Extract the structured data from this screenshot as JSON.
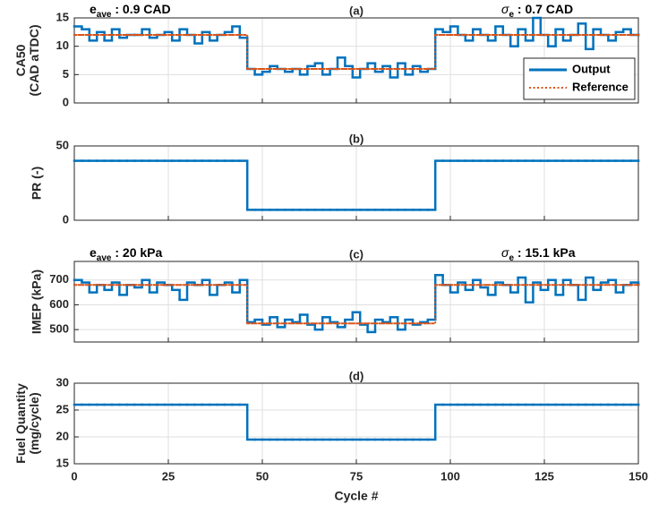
{
  "chart_data": [
    {
      "type": "line",
      "step": true,
      "title": "(a)",
      "ylabel": [
        "CA50",
        "(CAD aTDC)"
      ],
      "annotations": [
        {
          "text": "e",
          "sub": "ave",
          "rest": " : 0.9 CAD",
          "side": "left"
        },
        {
          "text": "σ",
          "sub": "e",
          "rest": " : 0.7 CAD",
          "side": "right"
        }
      ],
      "x": [
        0,
        2,
        4,
        6,
        8,
        10,
        12,
        14,
        16,
        18,
        20,
        22,
        24,
        26,
        28,
        30,
        32,
        34,
        36,
        38,
        40,
        42,
        44,
        46,
        48,
        50,
        52,
        54,
        56,
        58,
        60,
        62,
        64,
        66,
        68,
        70,
        72,
        74,
        76,
        78,
        80,
        82,
        84,
        86,
        88,
        90,
        92,
        94,
        96,
        98,
        100,
        102,
        104,
        106,
        108,
        110,
        112,
        114,
        116,
        118,
        120,
        122,
        124,
        126,
        128,
        130,
        132,
        134,
        136,
        138,
        140,
        142,
        144,
        146,
        148,
        150
      ],
      "series": [
        {
          "name": "Output",
          "color": "#0072bd",
          "style": "solid",
          "values": [
            13.5,
            13,
            11,
            12.5,
            11,
            13,
            11.5,
            12,
            12,
            13,
            11.5,
            12,
            12.5,
            11,
            13,
            12,
            10.5,
            12.5,
            11,
            12,
            12.5,
            13.5,
            11.5,
            6,
            5,
            5.5,
            6.5,
            6,
            5.5,
            6,
            5,
            6.5,
            7,
            5,
            6,
            8,
            6.5,
            4.5,
            6,
            7,
            5.5,
            6.5,
            4.5,
            7,
            5,
            6.5,
            5.5,
            6,
            13,
            12.5,
            13.5,
            12,
            11,
            13,
            12,
            11,
            13.5,
            12,
            10,
            13,
            11,
            15,
            12,
            10,
            13,
            11,
            12,
            14,
            9.5,
            13,
            12,
            11,
            12.5,
            13,
            12,
            12
          ]
        },
        {
          "name": "Reference",
          "color": "#d95319",
          "style": "dotted",
          "values": [
            12,
            12,
            12,
            12,
            12,
            12,
            12,
            12,
            12,
            12,
            12,
            12,
            12,
            12,
            12,
            12,
            12,
            12,
            12,
            12,
            12,
            12,
            12,
            6,
            6,
            6,
            6,
            6,
            6,
            6,
            6,
            6,
            6,
            6,
            6,
            6,
            6,
            6,
            6,
            6,
            6,
            6,
            6,
            6,
            6,
            6,
            6,
            6,
            12,
            12,
            12,
            12,
            12,
            12,
            12,
            12,
            12,
            12,
            12,
            12,
            12,
            12,
            12,
            12,
            12,
            12,
            12,
            12,
            12,
            12,
            12,
            12,
            12,
            12,
            12,
            12
          ]
        }
      ],
      "xlim": [
        0,
        150
      ],
      "xticks": [
        0,
        25,
        50,
        75,
        100,
        125,
        150
      ],
      "ylim": [
        0,
        15
      ],
      "yticks": [
        0,
        5,
        10,
        15
      ],
      "grid": true,
      "legend": "lower right"
    },
    {
      "type": "line",
      "step": true,
      "title": "(b)",
      "ylabel": [
        "PR (-)"
      ],
      "x": [
        0,
        2,
        4,
        6,
        8,
        10,
        12,
        14,
        16,
        18,
        20,
        22,
        24,
        26,
        28,
        30,
        32,
        34,
        36,
        38,
        40,
        42,
        44,
        46,
        48,
        50,
        52,
        54,
        56,
        58,
        60,
        62,
        64,
        66,
        68,
        70,
        72,
        74,
        76,
        78,
        80,
        82,
        84,
        86,
        88,
        90,
        92,
        94,
        96,
        98,
        100,
        102,
        104,
        106,
        108,
        110,
        112,
        114,
        116,
        118,
        120,
        122,
        124,
        126,
        128,
        130,
        132,
        134,
        136,
        138,
        140,
        142,
        144,
        146,
        148,
        150
      ],
      "series": [
        {
          "name": "Output",
          "color": "#0072bd",
          "style": "solid",
          "values": [
            40,
            40,
            40,
            40,
            40,
            40,
            40,
            40,
            40,
            40,
            40,
            40,
            40,
            40,
            40,
            40,
            40,
            40,
            40,
            40,
            40,
            40,
            40,
            7,
            7,
            7,
            7,
            7,
            7,
            7,
            7,
            7,
            7,
            7,
            7,
            7,
            7,
            7,
            7,
            7,
            7,
            7,
            7,
            7,
            7,
            7,
            7,
            7,
            40,
            40,
            40,
            40,
            40,
            40,
            40,
            40,
            40,
            40,
            40,
            40,
            40,
            40,
            40,
            40,
            40,
            40,
            40,
            40,
            40,
            40,
            40,
            40,
            40,
            40,
            40,
            40
          ]
        }
      ],
      "xlim": [
        0,
        150
      ],
      "xticks": [
        0,
        25,
        50,
        75,
        100,
        125,
        150
      ],
      "ylim": [
        0,
        50
      ],
      "yticks": [
        0,
        50
      ],
      "grid": true
    },
    {
      "type": "line",
      "step": true,
      "title": "(c)",
      "ylabel": [
        "IMEP (kPa)"
      ],
      "annotations": [
        {
          "text": "e",
          "sub": "ave",
          "rest": " : 20 kPa",
          "side": "left"
        },
        {
          "text": "σ",
          "sub": "e",
          "rest": " : 15.1 kPa",
          "side": "right"
        }
      ],
      "x": [
        0,
        2,
        4,
        6,
        8,
        10,
        12,
        14,
        16,
        18,
        20,
        22,
        24,
        26,
        28,
        30,
        32,
        34,
        36,
        38,
        40,
        42,
        44,
        46,
        48,
        50,
        52,
        54,
        56,
        58,
        60,
        62,
        64,
        66,
        68,
        70,
        72,
        74,
        76,
        78,
        80,
        82,
        84,
        86,
        88,
        90,
        92,
        94,
        96,
        98,
        100,
        102,
        104,
        106,
        108,
        110,
        112,
        114,
        116,
        118,
        120,
        122,
        124,
        126,
        128,
        130,
        132,
        134,
        136,
        138,
        140,
        142,
        144,
        146,
        148,
        150
      ],
      "series": [
        {
          "name": "Output",
          "color": "#0072bd",
          "style": "solid",
          "values": [
            700,
            690,
            650,
            680,
            660,
            690,
            640,
            680,
            670,
            700,
            650,
            690,
            680,
            660,
            620,
            690,
            680,
            700,
            640,
            680,
            690,
            650,
            700,
            530,
            540,
            520,
            550,
            510,
            540,
            530,
            560,
            520,
            500,
            550,
            530,
            510,
            540,
            570,
            520,
            490,
            540,
            530,
            550,
            500,
            540,
            520,
            530,
            540,
            720,
            680,
            650,
            690,
            660,
            700,
            670,
            640,
            690,
            680,
            650,
            710,
            610,
            690,
            660,
            700,
            640,
            700,
            680,
            620,
            710,
            660,
            690,
            700,
            650,
            680,
            690,
            680
          ]
        },
        {
          "name": "Reference",
          "color": "#d95319",
          "style": "dotted",
          "values": [
            680,
            680,
            680,
            680,
            680,
            680,
            680,
            680,
            680,
            680,
            680,
            680,
            680,
            680,
            680,
            680,
            680,
            680,
            680,
            680,
            680,
            680,
            680,
            525,
            525,
            525,
            525,
            525,
            525,
            525,
            525,
            525,
            525,
            525,
            525,
            525,
            525,
            525,
            525,
            525,
            525,
            525,
            525,
            525,
            525,
            525,
            525,
            525,
            680,
            680,
            680,
            680,
            680,
            680,
            680,
            680,
            680,
            680,
            680,
            680,
            680,
            680,
            680,
            680,
            680,
            680,
            680,
            680,
            680,
            680,
            680,
            680,
            680,
            680,
            680,
            680
          ]
        }
      ],
      "xlim": [
        0,
        150
      ],
      "xticks": [
        0,
        25,
        50,
        75,
        100,
        125,
        150
      ],
      "ylim": [
        450,
        775
      ],
      "yticks": [
        500,
        600,
        700
      ],
      "grid": true
    },
    {
      "type": "line",
      "step": true,
      "title": "(d)",
      "ylabel": [
        "Fuel Quantity",
        "(mg/cycle)"
      ],
      "xlabel": "Cycle #",
      "x": [
        0,
        2,
        4,
        6,
        8,
        10,
        12,
        14,
        16,
        18,
        20,
        22,
        24,
        26,
        28,
        30,
        32,
        34,
        36,
        38,
        40,
        42,
        44,
        46,
        48,
        50,
        52,
        54,
        56,
        58,
        60,
        62,
        64,
        66,
        68,
        70,
        72,
        74,
        76,
        78,
        80,
        82,
        84,
        86,
        88,
        90,
        92,
        94,
        96,
        98,
        100,
        102,
        104,
        106,
        108,
        110,
        112,
        114,
        116,
        118,
        120,
        122,
        124,
        126,
        128,
        130,
        132,
        134,
        136,
        138,
        140,
        142,
        144,
        146,
        148,
        150
      ],
      "series": [
        {
          "name": "Output",
          "color": "#0072bd",
          "style": "solid",
          "values": [
            26,
            26,
            26,
            26,
            26,
            26,
            26,
            26,
            26,
            26,
            26,
            26,
            26,
            26,
            26,
            26,
            26,
            26,
            26,
            26,
            26,
            26,
            26,
            19.5,
            19.5,
            19.5,
            19.5,
            19.5,
            19.5,
            19.5,
            19.5,
            19.5,
            19.5,
            19.5,
            19.5,
            19.5,
            19.5,
            19.5,
            19.5,
            19.5,
            19.5,
            19.5,
            19.5,
            19.5,
            19.5,
            19.5,
            19.5,
            19.5,
            26,
            26,
            26,
            26,
            26,
            26,
            26,
            26,
            26,
            26,
            26,
            26,
            26,
            26,
            26,
            26,
            26,
            26,
            26,
            26,
            26,
            26,
            26,
            26,
            26,
            26,
            26,
            26
          ]
        }
      ],
      "xlim": [
        0,
        150
      ],
      "xticks": [
        0,
        25,
        50,
        75,
        100,
        125,
        150
      ],
      "ylim": [
        15,
        30
      ],
      "yticks": [
        15,
        20,
        25,
        30
      ],
      "grid": true,
      "xticklabels": true
    }
  ]
}
